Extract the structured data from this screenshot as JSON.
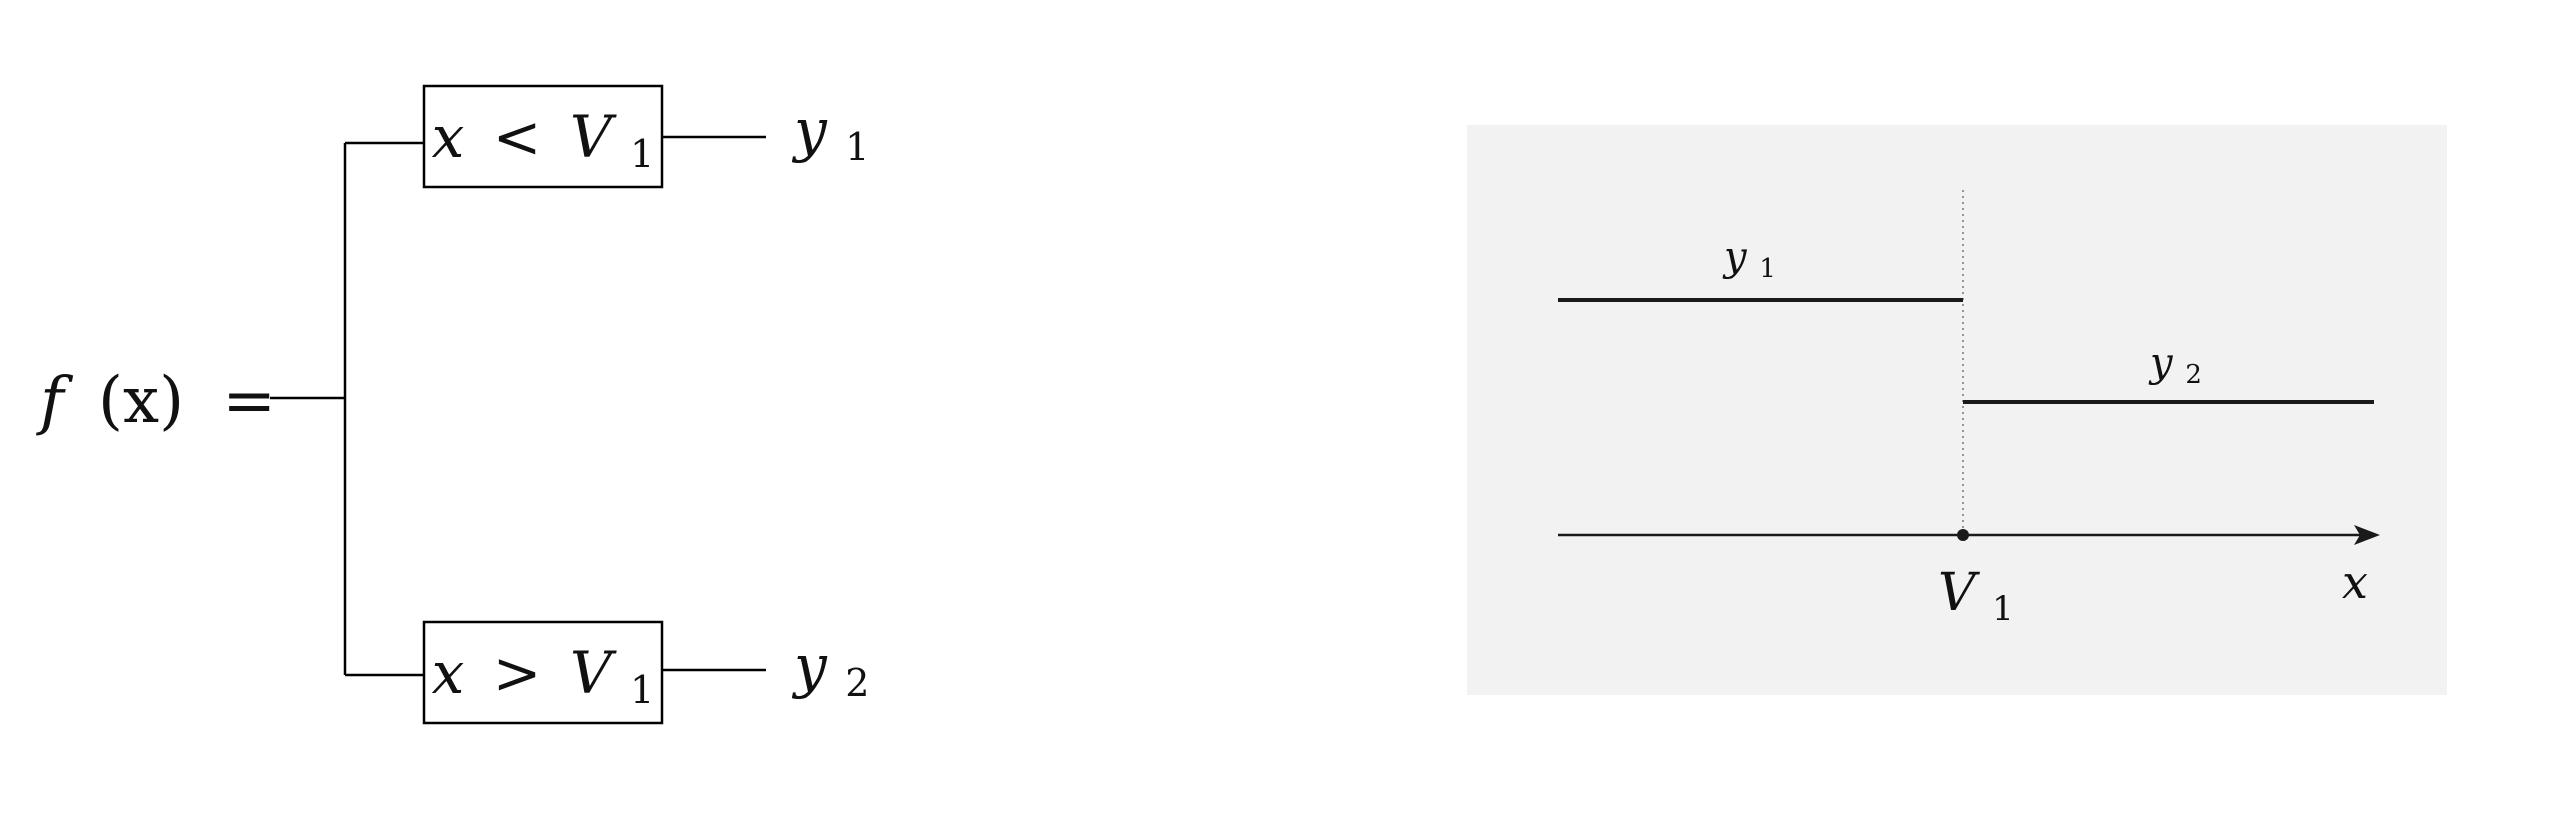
{
  "left": {
    "lhs": {
      "name": "f",
      "arg": "(x)",
      "equals": "="
    },
    "branches": [
      {
        "condition_var": "x",
        "condition_op": "<",
        "condition_bound": "V",
        "condition_sub": "1",
        "result": "y",
        "result_sub": "1"
      },
      {
        "condition_var": "x",
        "condition_op": ">",
        "condition_bound": "V",
        "condition_sub": "1",
        "result": "y",
        "result_sub": "2"
      }
    ]
  },
  "right": {
    "background": "#f2f2f2",
    "segments": [
      {
        "label": "y",
        "label_sub": "1"
      },
      {
        "label": "y",
        "label_sub": "2"
      }
    ],
    "split_label": "V",
    "split_sub": "1",
    "axis_label": "x"
  }
}
